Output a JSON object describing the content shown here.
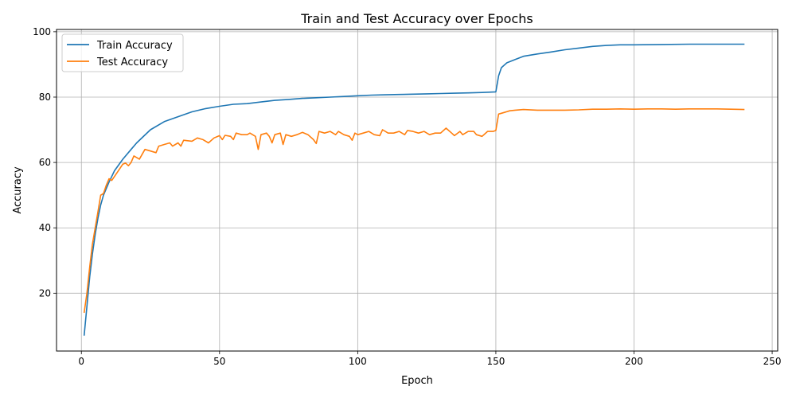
{
  "chart_data": {
    "type": "line",
    "title": "Train and Test Accuracy over Epochs",
    "xlabel": "Epoch",
    "ylabel": "Accuracy",
    "xlim": [
      -9,
      252
    ],
    "ylim": [
      2.3,
      100.7
    ],
    "xticks": [
      0,
      50,
      100,
      150,
      200,
      250
    ],
    "yticks": [
      20,
      40,
      60,
      80,
      100
    ],
    "grid": true,
    "legend_position": "top-left",
    "series": [
      {
        "name": "Train Accuracy",
        "color": "#1f77b4",
        "points": [
          [
            1,
            7
          ],
          [
            2,
            16
          ],
          [
            3,
            25
          ],
          [
            4,
            32
          ],
          [
            5,
            38
          ],
          [
            6,
            43
          ],
          [
            7,
            47
          ],
          [
            8,
            50
          ],
          [
            10,
            54
          ],
          [
            12,
            57.5
          ],
          [
            15,
            61
          ],
          [
            18,
            64
          ],
          [
            20,
            66
          ],
          [
            25,
            70
          ],
          [
            30,
            72.5
          ],
          [
            35,
            74
          ],
          [
            40,
            75.5
          ],
          [
            45,
            76.5
          ],
          [
            50,
            77.2
          ],
          [
            55,
            77.8
          ],
          [
            60,
            78
          ],
          [
            65,
            78.5
          ],
          [
            70,
            79
          ],
          [
            75,
            79.3
          ],
          [
            80,
            79.6
          ],
          [
            85,
            79.8
          ],
          [
            90,
            80
          ],
          [
            95,
            80.2
          ],
          [
            100,
            80.4
          ],
          [
            105,
            80.6
          ],
          [
            110,
            80.7
          ],
          [
            115,
            80.8
          ],
          [
            120,
            80.9
          ],
          [
            125,
            81
          ],
          [
            130,
            81.1
          ],
          [
            135,
            81.2
          ],
          [
            140,
            81.3
          ],
          [
            145,
            81.4
          ],
          [
            150,
            81.6
          ],
          [
            151,
            86.5
          ],
          [
            152,
            89
          ],
          [
            154,
            90.5
          ],
          [
            157,
            91.5
          ],
          [
            160,
            92.5
          ],
          [
            165,
            93.2
          ],
          [
            170,
            93.8
          ],
          [
            175,
            94.5
          ],
          [
            180,
            95
          ],
          [
            185,
            95.5
          ],
          [
            190,
            95.8
          ],
          [
            195,
            96
          ],
          [
            200,
            96
          ],
          [
            210,
            96.1
          ],
          [
            220,
            96.2
          ],
          [
            230,
            96.2
          ],
          [
            240,
            96.2
          ]
        ]
      },
      {
        "name": "Test Accuracy",
        "color": "#ff7f0e",
        "points": [
          [
            1,
            14
          ],
          [
            2,
            20
          ],
          [
            3,
            28
          ],
          [
            4,
            35
          ],
          [
            5,
            40
          ],
          [
            6,
            45
          ],
          [
            7,
            50
          ],
          [
            8,
            50.5
          ],
          [
            9,
            53
          ],
          [
            10,
            55
          ],
          [
            11,
            54.5
          ],
          [
            13,
            57
          ],
          [
            15,
            59.5
          ],
          [
            16,
            59.8
          ],
          [
            17,
            59
          ],
          [
            18,
            60
          ],
          [
            19,
            62
          ],
          [
            20,
            61.5
          ],
          [
            21,
            61
          ],
          [
            22,
            62.5
          ],
          [
            23,
            64
          ],
          [
            25,
            63.5
          ],
          [
            27,
            63
          ],
          [
            28,
            65
          ],
          [
            30,
            65.5
          ],
          [
            32,
            66
          ],
          [
            33,
            65
          ],
          [
            35,
            66
          ],
          [
            36,
            65
          ],
          [
            37,
            66.8
          ],
          [
            40,
            66.5
          ],
          [
            42,
            67.5
          ],
          [
            44,
            67
          ],
          [
            46,
            66
          ],
          [
            48,
            67.5
          ],
          [
            50,
            68.2
          ],
          [
            51,
            67
          ],
          [
            52,
            68.3
          ],
          [
            54,
            68
          ],
          [
            55,
            67
          ],
          [
            56,
            69
          ],
          [
            58,
            68.5
          ],
          [
            60,
            68.5
          ],
          [
            61,
            69
          ],
          [
            63,
            68
          ],
          [
            64,
            64
          ],
          [
            65,
            68.5
          ],
          [
            67,
            69
          ],
          [
            68,
            68
          ],
          [
            69,
            66
          ],
          [
            70,
            68.5
          ],
          [
            72,
            69
          ],
          [
            73,
            65.5
          ],
          [
            74,
            68.5
          ],
          [
            76,
            68
          ],
          [
            78,
            68.5
          ],
          [
            80,
            69.2
          ],
          [
            82,
            68.5
          ],
          [
            84,
            67
          ],
          [
            85,
            65.8
          ],
          [
            86,
            69.5
          ],
          [
            88,
            69
          ],
          [
            90,
            69.5
          ],
          [
            92,
            68.5
          ],
          [
            93,
            69.5
          ],
          [
            95,
            68.5
          ],
          [
            97,
            68
          ],
          [
            98,
            66.8
          ],
          [
            99,
            69
          ],
          [
            100,
            68.5
          ],
          [
            102,
            69
          ],
          [
            104,
            69.5
          ],
          [
            106,
            68.5
          ],
          [
            108,
            68.2
          ],
          [
            109,
            70
          ],
          [
            111,
            69
          ],
          [
            113,
            69
          ],
          [
            115,
            69.5
          ],
          [
            117,
            68.5
          ],
          [
            118,
            69.8
          ],
          [
            120,
            69.5
          ],
          [
            122,
            69
          ],
          [
            124,
            69.5
          ],
          [
            126,
            68.5
          ],
          [
            128,
            69
          ],
          [
            130,
            69
          ],
          [
            132,
            70.5
          ],
          [
            134,
            69
          ],
          [
            135,
            68.2
          ],
          [
            137,
            69.5
          ],
          [
            138,
            68.5
          ],
          [
            140,
            69.5
          ],
          [
            142,
            69.5
          ],
          [
            143,
            68.5
          ],
          [
            145,
            68
          ],
          [
            147,
            69.5
          ],
          [
            149,
            69.5
          ],
          [
            150,
            69.8
          ],
          [
            151,
            74.8
          ],
          [
            153,
            75.3
          ],
          [
            155,
            75.8
          ],
          [
            157,
            76
          ],
          [
            160,
            76.2
          ],
          [
            165,
            76
          ],
          [
            170,
            76
          ],
          [
            175,
            76
          ],
          [
            180,
            76.1
          ],
          [
            185,
            76.3
          ],
          [
            190,
            76.3
          ],
          [
            195,
            76.4
          ],
          [
            200,
            76.3
          ],
          [
            205,
            76.4
          ],
          [
            210,
            76.4
          ],
          [
            215,
            76.3
          ],
          [
            220,
            76.4
          ],
          [
            225,
            76.4
          ],
          [
            230,
            76.4
          ],
          [
            235,
            76.3
          ],
          [
            240,
            76.2
          ]
        ]
      }
    ]
  }
}
